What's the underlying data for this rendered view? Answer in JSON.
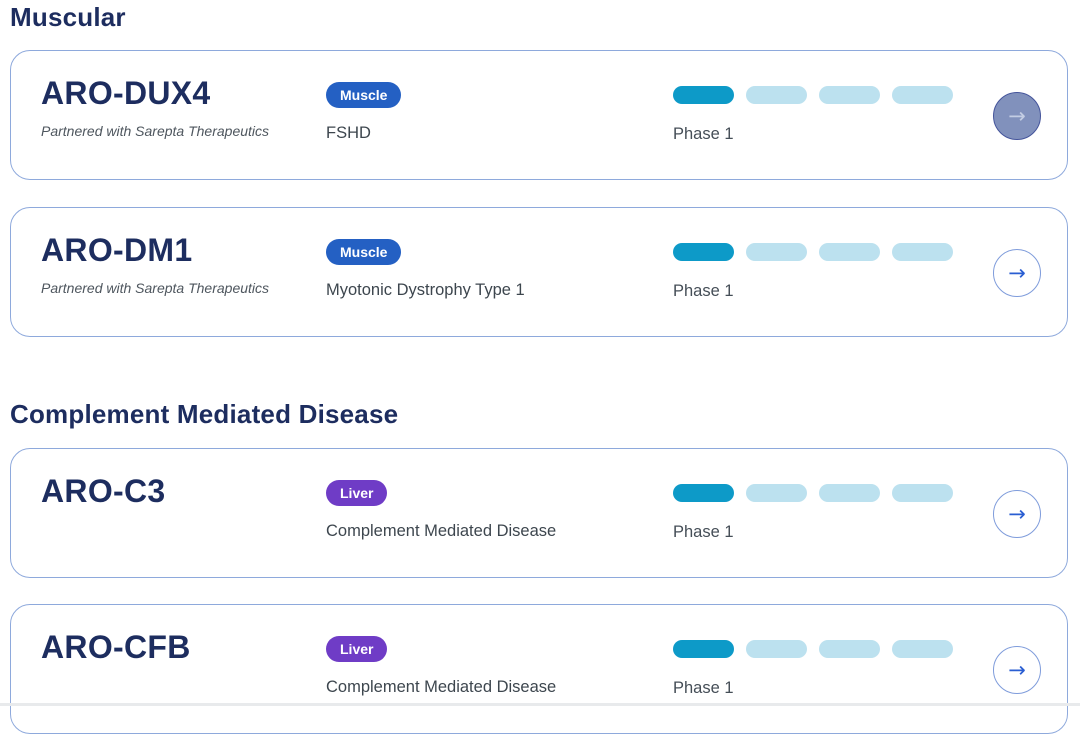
{
  "sections": [
    {
      "title": "Muscular",
      "cards": [
        {
          "name": "ARO-DUX4",
          "subtitle": "Partnered with Sarepta Therapeutics",
          "badge": "Muscle",
          "badge_color": "#2460c3",
          "indication": "FSHD",
          "phase_label": "Phase 1",
          "phase": {
            "completed": 1,
            "total": 4
          },
          "arrow_state": "hover"
        },
        {
          "name": "ARO-DM1",
          "subtitle": "Partnered with Sarepta Therapeutics",
          "badge": "Muscle",
          "badge_color": "#2460c3",
          "indication": "Myotonic Dystrophy Type 1",
          "phase_label": "Phase 1",
          "phase": {
            "completed": 1,
            "total": 4
          },
          "arrow_state": "default"
        }
      ]
    },
    {
      "title": "Complement Mediated Disease",
      "cards": [
        {
          "name": "ARO-C3",
          "badge": "Liver",
          "badge_color": "#6f3cc6",
          "indication": "Complement Mediated Disease",
          "phase_label": "Phase 1",
          "phase": {
            "completed": 1,
            "total": 4
          },
          "arrow_state": "default"
        },
        {
          "name": "ARO-CFB",
          "badge": "Liver",
          "badge_color": "#6f3cc6",
          "indication": "Complement Mediated Disease",
          "phase_label": "Phase 1",
          "phase": {
            "completed": 1,
            "total": 4
          },
          "arrow_state": "default"
        }
      ]
    }
  ],
  "icons": {
    "arrow_right": "→"
  },
  "colors": {
    "heading_text": "#1d2d5f",
    "card_border": "#8ea9dc",
    "badge_muscle": "#2460c3",
    "badge_liver": "#6f3cc6",
    "pill_active": "#0d9ac8",
    "pill_inactive": "#bce1ef",
    "arrow_blue": "#2a5ed2",
    "arrow_hover_fill": "#8191bc"
  }
}
